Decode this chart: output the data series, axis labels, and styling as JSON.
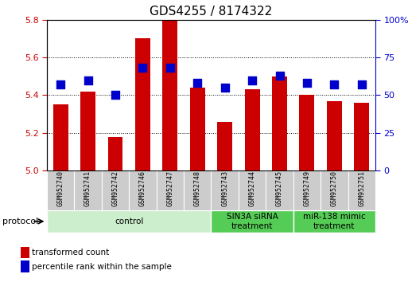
{
  "title": "GDS4255 / 8174322",
  "samples": [
    "GSM952740",
    "GSM952741",
    "GSM952742",
    "GSM952746",
    "GSM952747",
    "GSM952748",
    "GSM952743",
    "GSM952744",
    "GSM952745",
    "GSM952749",
    "GSM952750",
    "GSM952751"
  ],
  "transformed_counts": [
    5.35,
    5.42,
    5.18,
    5.7,
    5.8,
    5.44,
    5.26,
    5.43,
    5.5,
    5.4,
    5.37,
    5.36
  ],
  "percentile_ranks": [
    57,
    60,
    50,
    68,
    68,
    58,
    55,
    60,
    63,
    58,
    57,
    57
  ],
  "bar_bottom": 5.0,
  "ylim_left": [
    5.0,
    5.8
  ],
  "ylim_right": [
    0,
    100
  ],
  "yticks_left": [
    5.0,
    5.2,
    5.4,
    5.6,
    5.8
  ],
  "yticks_right": [
    0,
    25,
    50,
    75,
    100
  ],
  "yticklabels_right": [
    "0",
    "25",
    "50",
    "75",
    "100%"
  ],
  "bar_color": "#cc0000",
  "dot_color": "#0000cc",
  "bar_width": 0.55,
  "dot_size": 55,
  "title_fontsize": 11,
  "tick_fontsize": 8,
  "sample_fontsize": 6.0,
  "legend_fontsize": 7.5,
  "proto_fontsize": 7.5,
  "group_ranges": [
    {
      "start": 0,
      "end": 5,
      "label": "control",
      "facecolor": "#cceecc",
      "edgecolor": "#aaddaa"
    },
    {
      "start": 6,
      "end": 8,
      "label": "SIN3A siRNA\ntreatment",
      "facecolor": "#55cc55",
      "edgecolor": "#33aa33"
    },
    {
      "start": 9,
      "end": 11,
      "label": "miR-138 mimic\ntreatment",
      "facecolor": "#55cc55",
      "edgecolor": "#33aa33"
    }
  ],
  "legend_items": [
    {
      "label": "transformed count",
      "color": "#cc0000"
    },
    {
      "label": "percentile rank within the sample",
      "color": "#0000cc"
    }
  ],
  "protocol_label": "protocol"
}
